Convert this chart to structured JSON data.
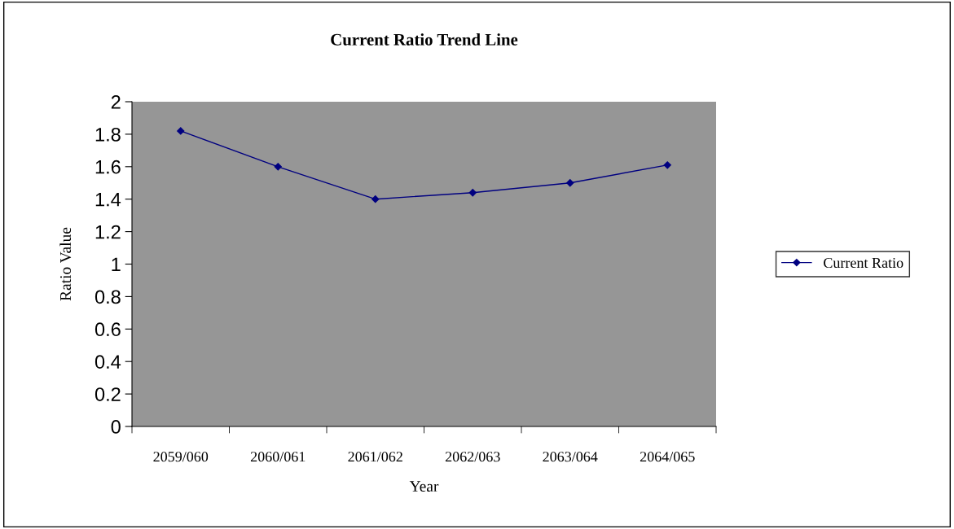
{
  "chart_data": {
    "type": "line",
    "title": "Current Ratio Trend Line",
    "xlabel": "Year",
    "ylabel": "Ratio Value",
    "categories": [
      "2059/060",
      "2060/061",
      "2061/062",
      "2062/063",
      "2063/064",
      "2064/065"
    ],
    "series": [
      {
        "name": "Current Ratio",
        "color": "#000080",
        "values": [
          1.82,
          1.6,
          1.4,
          1.44,
          1.5,
          1.61
        ]
      }
    ],
    "ylim": [
      0,
      2
    ],
    "yticks": [
      0,
      0.2,
      0.4,
      0.6,
      0.8,
      1,
      1.2,
      1.4,
      1.6,
      1.8,
      2
    ],
    "grid": false,
    "legend": "right",
    "marker": "diamond",
    "line_style": "solid"
  }
}
